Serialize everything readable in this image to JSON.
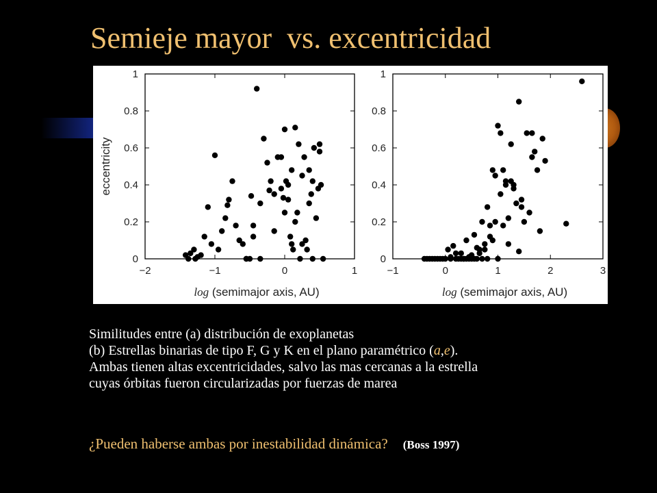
{
  "slide": {
    "title": "Semieje mayor  vs. excentricidad",
    "caption_lines": [
      "Similitudes entre (a) distribución de exoplanetas",
      "(b) Estrellas binarias de tipo F, G y K en el plano paramétrico (",
      "Ambas tienen altas excentricidades, salvo las mas cercanas a la estrella",
      "cuyas órbitas fueron circularizadas por fuerzas de marea"
    ],
    "caption_param_a": "a",
    "caption_param_sep": ",",
    "caption_param_e": "e",
    "caption_line2_end": ").",
    "question": "¿Pueden haberse ambas por inestabilidad dinámica?",
    "reference": "(Boss 1997)",
    "colors": {
      "title": "#f0c070",
      "text": "#ffffff",
      "background": "#000000"
    }
  },
  "chart_data": [
    {
      "type": "scatter",
      "title": "",
      "xlabel_prefix": "log",
      "xlabel_text": " (semimajor axis, AU)",
      "ylabel": "eccentricity",
      "xlim": [
        -2,
        1
      ],
      "ylim": [
        0,
        1
      ],
      "xticks": [
        "−2",
        "−1",
        "0",
        "1"
      ],
      "yticks": [
        "0",
        "0.2",
        "0.4",
        "0.6",
        "0.8",
        "1"
      ],
      "x": [
        -1.42,
        -1.35,
        -1.3,
        -1.25,
        -1.2,
        -1.38,
        -1.28,
        -1.1,
        -1.15,
        -1.05,
        -0.95,
        -1.0,
        -0.85,
        -0.82,
        -0.8,
        -0.75,
        -0.7,
        -0.65,
        -0.6,
        -0.55,
        -0.5,
        -0.48,
        -0.45,
        -0.4,
        -0.35,
        -0.3,
        -0.25,
        -0.2,
        -0.15,
        -0.1,
        -0.05,
        -0.02,
        0.0,
        0.02,
        0.05,
        0.08,
        0.1,
        0.12,
        0.15,
        0.18,
        0.2,
        0.22,
        0.25,
        0.28,
        0.3,
        0.32,
        0.35,
        0.38,
        0.4,
        0.42,
        0.45,
        0.48,
        0.5,
        0.52,
        0.55,
        -0.22,
        -0.9,
        -0.55,
        0.05,
        -0.35,
        0.0,
        -0.15,
        0.25,
        0.4,
        -0.05,
        0.15,
        0.5,
        -0.45,
        0.1,
        0.35
      ],
      "y": [
        0.02,
        0.03,
        0.05,
        0.01,
        0.02,
        0.0,
        0.0,
        0.28,
        0.12,
        0.08,
        0.05,
        0.56,
        0.22,
        0.29,
        0.32,
        0.42,
        0.18,
        0.1,
        0.08,
        0.0,
        0.0,
        0.34,
        0.18,
        0.92,
        0.3,
        0.65,
        0.52,
        0.42,
        0.35,
        0.55,
        0.38,
        0.33,
        0.7,
        0.42,
        0.32,
        0.12,
        0.48,
        0.05,
        0.71,
        0.25,
        0.62,
        0.0,
        0.08,
        0.55,
        0.1,
        0.05,
        0.48,
        0.35,
        0.42,
        0.6,
        0.22,
        0.38,
        0.62,
        0.4,
        0.0,
        0.37,
        0.15,
        0.0,
        0.4,
        0.0,
        0.25,
        0.15,
        0.45,
        0.0,
        0.55,
        0.2,
        0.58,
        0.12,
        0.08,
        0.3
      ]
    },
    {
      "type": "scatter",
      "title": "",
      "xlabel_prefix": "log",
      "xlabel_text": " (semimajor axis, AU)",
      "ylabel": "",
      "xlim": [
        -1,
        3
      ],
      "ylim": [
        0,
        1
      ],
      "xticks": [
        "−1",
        "0",
        "1",
        "2",
        "3"
      ],
      "yticks": [
        "0",
        "0.2",
        "0.4",
        "0.6",
        "0.8",
        "1"
      ],
      "x": [
        -0.4,
        -0.35,
        -0.3,
        -0.25,
        -0.2,
        -0.15,
        -0.1,
        -0.05,
        0.0,
        0.05,
        0.1,
        0.15,
        0.2,
        0.25,
        0.3,
        0.35,
        0.4,
        0.45,
        0.5,
        0.55,
        0.6,
        0.65,
        0.7,
        0.75,
        0.8,
        0.85,
        0.9,
        0.95,
        1.0,
        1.05,
        1.1,
        1.15,
        1.2,
        1.25,
        1.3,
        1.35,
        1.4,
        1.45,
        1.5,
        1.55,
        1.6,
        1.65,
        1.7,
        1.75,
        1.8,
        1.85,
        1.9,
        2.3,
        2.6,
        0.4,
        0.6,
        0.8,
        1.0,
        1.2,
        1.4,
        0.3,
        0.5,
        0.7,
        0.9,
        1.1,
        1.3,
        0.2,
        0.45,
        0.65,
        0.85,
        1.05,
        1.25,
        1.45,
        1.65,
        0.1,
        0.35,
        0.55,
        0.75,
        0.95,
        1.15
      ],
      "y": [
        0.0,
        0.0,
        0.0,
        0.0,
        0.0,
        0.0,
        0.0,
        0.0,
        0.0,
        0.05,
        0.0,
        0.07,
        0.03,
        0.0,
        0.0,
        0.0,
        0.1,
        0.0,
        0.0,
        0.13,
        0.0,
        0.03,
        0.2,
        0.05,
        0.28,
        0.18,
        0.48,
        0.45,
        0.72,
        0.68,
        0.48,
        0.4,
        0.22,
        0.62,
        0.38,
        0.3,
        0.85,
        0.28,
        0.2,
        0.68,
        0.25,
        0.68,
        0.58,
        0.48,
        0.15,
        0.65,
        0.53,
        0.19,
        0.96,
        0.0,
        0.06,
        0.0,
        0.0,
        0.08,
        0.04,
        0.03,
        0.02,
        0.0,
        0.1,
        0.18,
        0.4,
        0.0,
        0.01,
        0.05,
        0.12,
        0.35,
        0.42,
        0.32,
        0.55,
        0.01,
        0.0,
        0.0,
        0.08,
        0.2,
        0.42
      ]
    }
  ]
}
